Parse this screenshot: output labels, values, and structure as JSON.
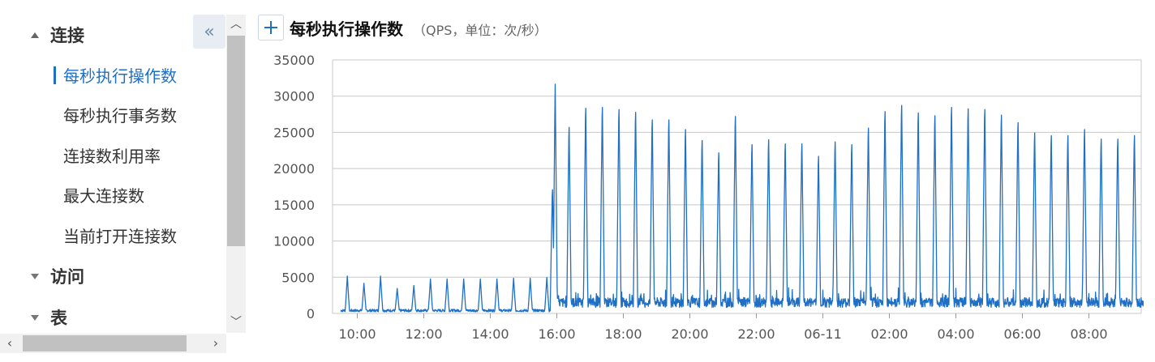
{
  "sidebar": {
    "groups": [
      {
        "label": "连接",
        "expanded": true,
        "items": [
          "每秒执行操作数",
          "每秒执行事务数",
          "连接数利用率",
          "最大连接数",
          "当前打开连接数"
        ],
        "active_item": "每秒执行操作数"
      },
      {
        "label": "访问",
        "expanded": false
      },
      {
        "label": "表",
        "expanded": false
      }
    ],
    "collapse_icon": "double-chevron-left-icon"
  },
  "chart_header": {
    "add_icon": "plus-icon",
    "title": "每秒执行操作数",
    "subtitle": "（QPS，单位：次/秒）"
  },
  "colors": {
    "accent": "#1f6fc5",
    "line": "#1f6fc5",
    "grid": "#c8c8c8"
  },
  "chart_data": {
    "type": "line",
    "title": "每秒执行操作数",
    "subtitle": "（QPS，单位：次/秒）",
    "xlabel": "",
    "ylabel": "",
    "ylim": [
      0,
      35000
    ],
    "yticks": [
      0,
      5000,
      10000,
      15000,
      20000,
      25000,
      30000,
      35000
    ],
    "xticks": [
      "10:00",
      "12:00",
      "14:00",
      "16:00",
      "18:00",
      "20:00",
      "22:00",
      "06-11",
      "02:00",
      "04:00",
      "06:00",
      "08:00"
    ],
    "grid": true,
    "baseline": {
      "before_16_00": 400,
      "after_16_00": 1500
    },
    "series": [
      {
        "peaks": [
          {
            "t": "09:42",
            "v": 5000
          },
          {
            "t": "10:12",
            "v": 4000
          },
          {
            "t": "10:42",
            "v": 5000
          },
          {
            "t": "11:12",
            "v": 3300
          },
          {
            "t": "11:42",
            "v": 3700
          },
          {
            "t": "12:12",
            "v": 4600
          },
          {
            "t": "12:42",
            "v": 4600
          },
          {
            "t": "13:12",
            "v": 4600
          },
          {
            "t": "13:42",
            "v": 4600
          },
          {
            "t": "14:12",
            "v": 4600
          },
          {
            "t": "14:42",
            "v": 4700
          },
          {
            "t": "15:12",
            "v": 4700
          },
          {
            "t": "15:42",
            "v": 4800
          },
          {
            "t": "15:52",
            "v": 17800
          },
          {
            "t": "15:57",
            "v": 31500
          },
          {
            "t": "16:22",
            "v": 26400
          },
          {
            "t": "16:52",
            "v": 29200
          },
          {
            "t": "17:22",
            "v": 29300
          },
          {
            "t": "17:52",
            "v": 29000
          },
          {
            "t": "18:22",
            "v": 28600
          },
          {
            "t": "18:52",
            "v": 27500
          },
          {
            "t": "19:22",
            "v": 27500
          },
          {
            "t": "19:52",
            "v": 26100
          },
          {
            "t": "20:22",
            "v": 24500
          },
          {
            "t": "20:52",
            "v": 22700
          },
          {
            "t": "21:22",
            "v": 28000
          },
          {
            "t": "21:52",
            "v": 23900
          },
          {
            "t": "22:22",
            "v": 24600
          },
          {
            "t": "22:52",
            "v": 24000
          },
          {
            "t": "23:22",
            "v": 24000
          },
          {
            "t": "23:52",
            "v": 22200
          },
          {
            "t": "00:22",
            "v": 24300
          },
          {
            "t": "00:52",
            "v": 23900
          },
          {
            "t": "01:22",
            "v": 26300
          },
          {
            "t": "01:52",
            "v": 28700
          },
          {
            "t": "02:22",
            "v": 29600
          },
          {
            "t": "02:52",
            "v": 28500
          },
          {
            "t": "03:22",
            "v": 28100
          },
          {
            "t": "03:52",
            "v": 29300
          },
          {
            "t": "04:22",
            "v": 29100
          },
          {
            "t": "04:52",
            "v": 29000
          },
          {
            "t": "05:22",
            "v": 28200
          },
          {
            "t": "05:52",
            "v": 27100
          },
          {
            "t": "06:22",
            "v": 25600
          },
          {
            "t": "06:52",
            "v": 25200
          },
          {
            "t": "07:22",
            "v": 25200
          },
          {
            "t": "07:52",
            "v": 26100
          },
          {
            "t": "08:22",
            "v": 24700
          },
          {
            "t": "08:52",
            "v": 24700
          },
          {
            "t": "09:22",
            "v": 25200
          }
        ]
      }
    ]
  }
}
